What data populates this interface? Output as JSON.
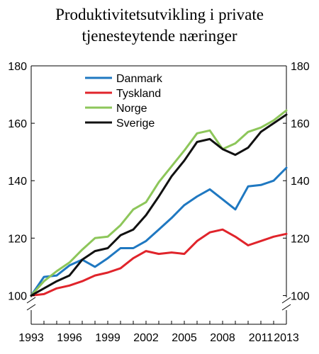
{
  "chart_data": {
    "type": "line",
    "title_lines": [
      "Produktivitetsutvikling i private",
      "tjenesteytende næringer"
    ],
    "x": [
      1993,
      1994,
      1995,
      1996,
      1997,
      1998,
      1999,
      2000,
      2001,
      2002,
      2003,
      2004,
      2005,
      2006,
      2007,
      2008,
      2009,
      2010,
      2011,
      2012,
      2013
    ],
    "x_tick_labels": [
      "1993",
      "1996",
      "1999",
      "2002",
      "2005",
      "2008",
      "2011",
      "2013"
    ],
    "y_tick_labels": [
      "100",
      "120",
      "140",
      "160",
      "180"
    ],
    "ylim": [
      90,
      180
    ],
    "axis_break": "y-axis broken below 100",
    "grid": false,
    "legend_position": "top-left inside plot",
    "series": [
      {
        "name": "Danmark",
        "color": "#1f78c1",
        "values": [
          100,
          106.5,
          107,
          110.5,
          112.5,
          110,
          113,
          116.5,
          116.5,
          119,
          123,
          127,
          131.5,
          134.5,
          137,
          133.5,
          130,
          138,
          138.5,
          140,
          144.5
        ]
      },
      {
        "name": "Tyskland",
        "color": "#e0242b",
        "values": [
          100,
          100.5,
          102.5,
          103.5,
          105,
          107,
          108,
          109.5,
          113,
          115.5,
          114.5,
          115,
          114.5,
          119,
          122,
          123,
          120.5,
          117.5,
          119,
          120.5,
          121.5
        ]
      },
      {
        "name": "Norge",
        "color": "#8dc65a",
        "values": [
          100,
          105,
          108.5,
          111.5,
          116,
          120,
          120.5,
          124.5,
          130,
          132.5,
          139.5,
          145,
          150.5,
          156.5,
          157.5,
          151,
          153,
          157,
          158.5,
          161,
          164.5
        ]
      },
      {
        "name": "Sverige",
        "color": "#111111",
        "values": [
          100,
          102.5,
          105,
          107,
          112.5,
          115.5,
          116.5,
          121,
          123,
          128,
          134.5,
          141.5,
          147,
          153.5,
          154.5,
          151,
          149,
          151.5,
          157,
          160,
          163
        ]
      }
    ]
  }
}
